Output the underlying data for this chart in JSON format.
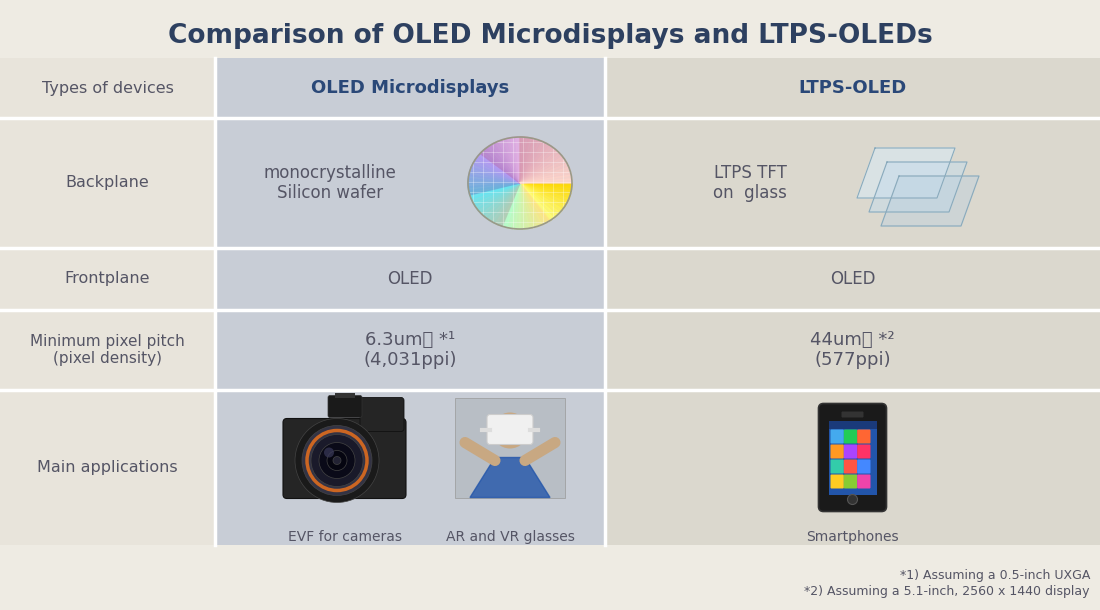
{
  "title": "Comparison of OLED Microdisplays and LTPS-OLEDs",
  "title_color": "#2d4060",
  "title_fontsize": 19,
  "bg_color": "#eeebe3",
  "col0_bg": "#e8e4db",
  "col1_bg": "#c8cdd6",
  "col2_bg": "#dbd8ce",
  "divider_color": "#ffffff",
  "text_dark": "#3a3a4a",
  "text_mid": "#555565",
  "header1_color": "#2a4878",
  "header2_color": "#2a4878",
  "footnote_color": "#555565",
  "row_labels": [
    "Types of devices",
    "Backplane",
    "Frontplane",
    "Minimum pixel pitch\n(pixel density)",
    "Main applications"
  ],
  "col1_header": "OLED Microdisplays",
  "col2_header": "LTPS-OLED",
  "col1_backplane_text": "monocrystalline\nSilicon wafer",
  "col2_backplane_text": "LTPS TFT\non  glass",
  "col1_frontplane": "OLED",
  "col2_frontplane": "OLED",
  "col1_pixel": "6.3um～ *¹\n(4,031ppi)",
  "col2_pixel": "44um～ *²\n(577ppi)",
  "col1_apps": [
    "EVF for cameras",
    "AR and VR glasses"
  ],
  "col2_apps": [
    "Smartphones"
  ],
  "footnote1": "*1) Assuming a 0.5-inch UXGA",
  "footnote2": "*2) Assuming a 5.1-inch, 2560 x 1440 display"
}
